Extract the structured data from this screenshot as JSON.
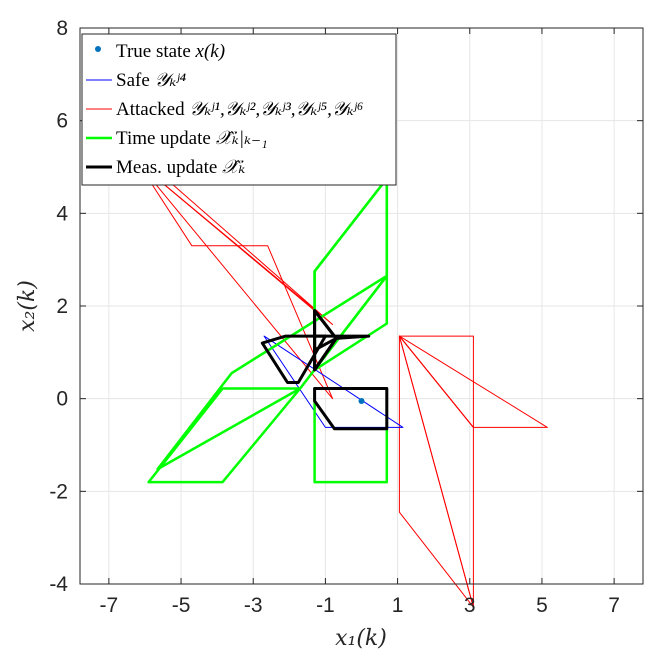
{
  "chart_data": {
    "type": "line",
    "title": "",
    "xlabel": "x₁(k)",
    "ylabel": "x₂(k)",
    "xlim": [
      -7.8,
      7.8
    ],
    "ylim": [
      -4,
      8
    ],
    "xticks": [
      -7,
      -5,
      -3,
      -1,
      1,
      3,
      5,
      7
    ],
    "yticks": [
      -4,
      -2,
      0,
      2,
      4,
      6,
      8
    ],
    "grid": true,
    "legend_position": "top-left",
    "colors": {
      "true_state": "#0072BD",
      "safe": "#0000FF",
      "attacked": "#FF0000",
      "time_update": "#00FF00",
      "meas_update": "#000000"
    },
    "series": [
      {
        "name": "True state x(k)",
        "kind": "point",
        "points": [
          [
            0.0,
            -0.05
          ]
        ]
      },
      {
        "name": "Safe Y_k^{J4}",
        "kind": "polygon",
        "polygons": [
          [
            [
              -2.7,
              1.35
            ],
            [
              1.15,
              -0.62
            ],
            [
              -1.0,
              -0.62
            ]
          ]
        ]
      },
      {
        "name": "Attacked Y_k^{J1},Y_k^{J2},Y_k^{J3},Y_k^{J5},Y_k^{J6}",
        "kind": "polygon",
        "polygons": [
          [
            [
              1.05,
              1.35
            ],
            [
              3.1,
              1.35
            ],
            [
              3.1,
              -0.62
            ],
            [
              1.05,
              1.35
            ]
          ],
          [
            [
              1.05,
              1.35
            ],
            [
              5.15,
              -0.62
            ],
            [
              3.1,
              -0.62
            ]
          ],
          [
            [
              1.05,
              1.35
            ],
            [
              1.05,
              -2.45
            ],
            [
              3.1,
              -4.5
            ]
          ],
          [
            [
              1.05,
              1.35
            ],
            [
              3.1,
              -0.62
            ],
            [
              3.1,
              -4.5
            ]
          ],
          [
            [
              -6.2,
              5.1
            ],
            [
              -4.7,
              3.3
            ],
            [
              -2.6,
              3.3
            ],
            [
              -0.8,
              0.0
            ]
          ],
          [
            [
              -6.2,
              5.1
            ],
            [
              -5.2,
              4.6
            ],
            [
              -0.8,
              1.6
            ]
          ],
          [
            [
              -6.2,
              5.1
            ],
            [
              -1.3,
              1.9
            ]
          ]
        ]
      },
      {
        "name": "Time update X̂_{k|k-1}",
        "kind": "polygon",
        "polygons": [
          [
            [
              -1.3,
              0.22
            ],
            [
              0.7,
              0.22
            ],
            [
              0.7,
              -1.8
            ],
            [
              -1.3,
              -1.8
            ]
          ],
          [
            [
              -5.9,
              -1.8
            ],
            [
              -3.85,
              -1.8
            ],
            [
              -1.7,
              0.22
            ],
            [
              -3.85,
              0.22
            ]
          ],
          [
            [
              -5.65,
              -1.52
            ],
            [
              -3.6,
              0.55
            ],
            [
              0.7,
              2.65
            ],
            [
              -1.7,
              0.22
            ]
          ],
          [
            [
              -1.3,
              0.62
            ],
            [
              0.7,
              2.65
            ],
            [
              0.7,
              4.75
            ],
            [
              -1.3,
              2.75
            ]
          ],
          [
            [
              -1.3,
              0.62
            ],
            [
              0.7,
              1.62
            ],
            [
              0.7,
              4.75
            ],
            [
              -1.3,
              2.75
            ]
          ]
        ]
      },
      {
        "name": "Meas. update X̂_k",
        "kind": "polygon",
        "polygons": [
          [
            [
              -1.3,
              0.22
            ],
            [
              0.7,
              0.22
            ],
            [
              0.7,
              -0.65
            ],
            [
              -0.75,
              -0.65
            ],
            [
              -1.3,
              -0.05
            ]
          ],
          [
            [
              -2.75,
              1.2
            ],
            [
              -2.1,
              1.35
            ],
            [
              -1.0,
              1.35
            ],
            [
              -1.75,
              0.35
            ],
            [
              -2.05,
              0.35
            ]
          ],
          [
            [
              -1.3,
              0.62
            ],
            [
              -0.7,
              1.3
            ],
            [
              0.2,
              1.35
            ],
            [
              -1.3,
              1.35
            ]
          ],
          [
            [
              -1.3,
              1.9
            ],
            [
              -0.7,
              1.3
            ],
            [
              -1.3,
              1.05
            ]
          ],
          [
            [
              -1.3,
              0.62
            ],
            [
              -0.7,
              1.3
            ],
            [
              -1.3,
              1.9
            ]
          ]
        ]
      }
    ]
  },
  "legend": {
    "items": [
      {
        "text": "True state ",
        "math": "x(k)"
      },
      {
        "text": "Safe ",
        "math": "𝒴ₖʲ⁴"
      },
      {
        "text": "Attacked ",
        "math": "𝒴ₖʲ¹,𝒴ₖʲ²,𝒴ₖʲ³,𝒴ₖʲ⁵,𝒴ₖʲ⁶"
      },
      {
        "text": "Time update ",
        "math": "𝒳̂ₖ|ₖ₋₁"
      },
      {
        "text": "Meas. update ",
        "math": "𝒳̂ₖ"
      }
    ]
  }
}
